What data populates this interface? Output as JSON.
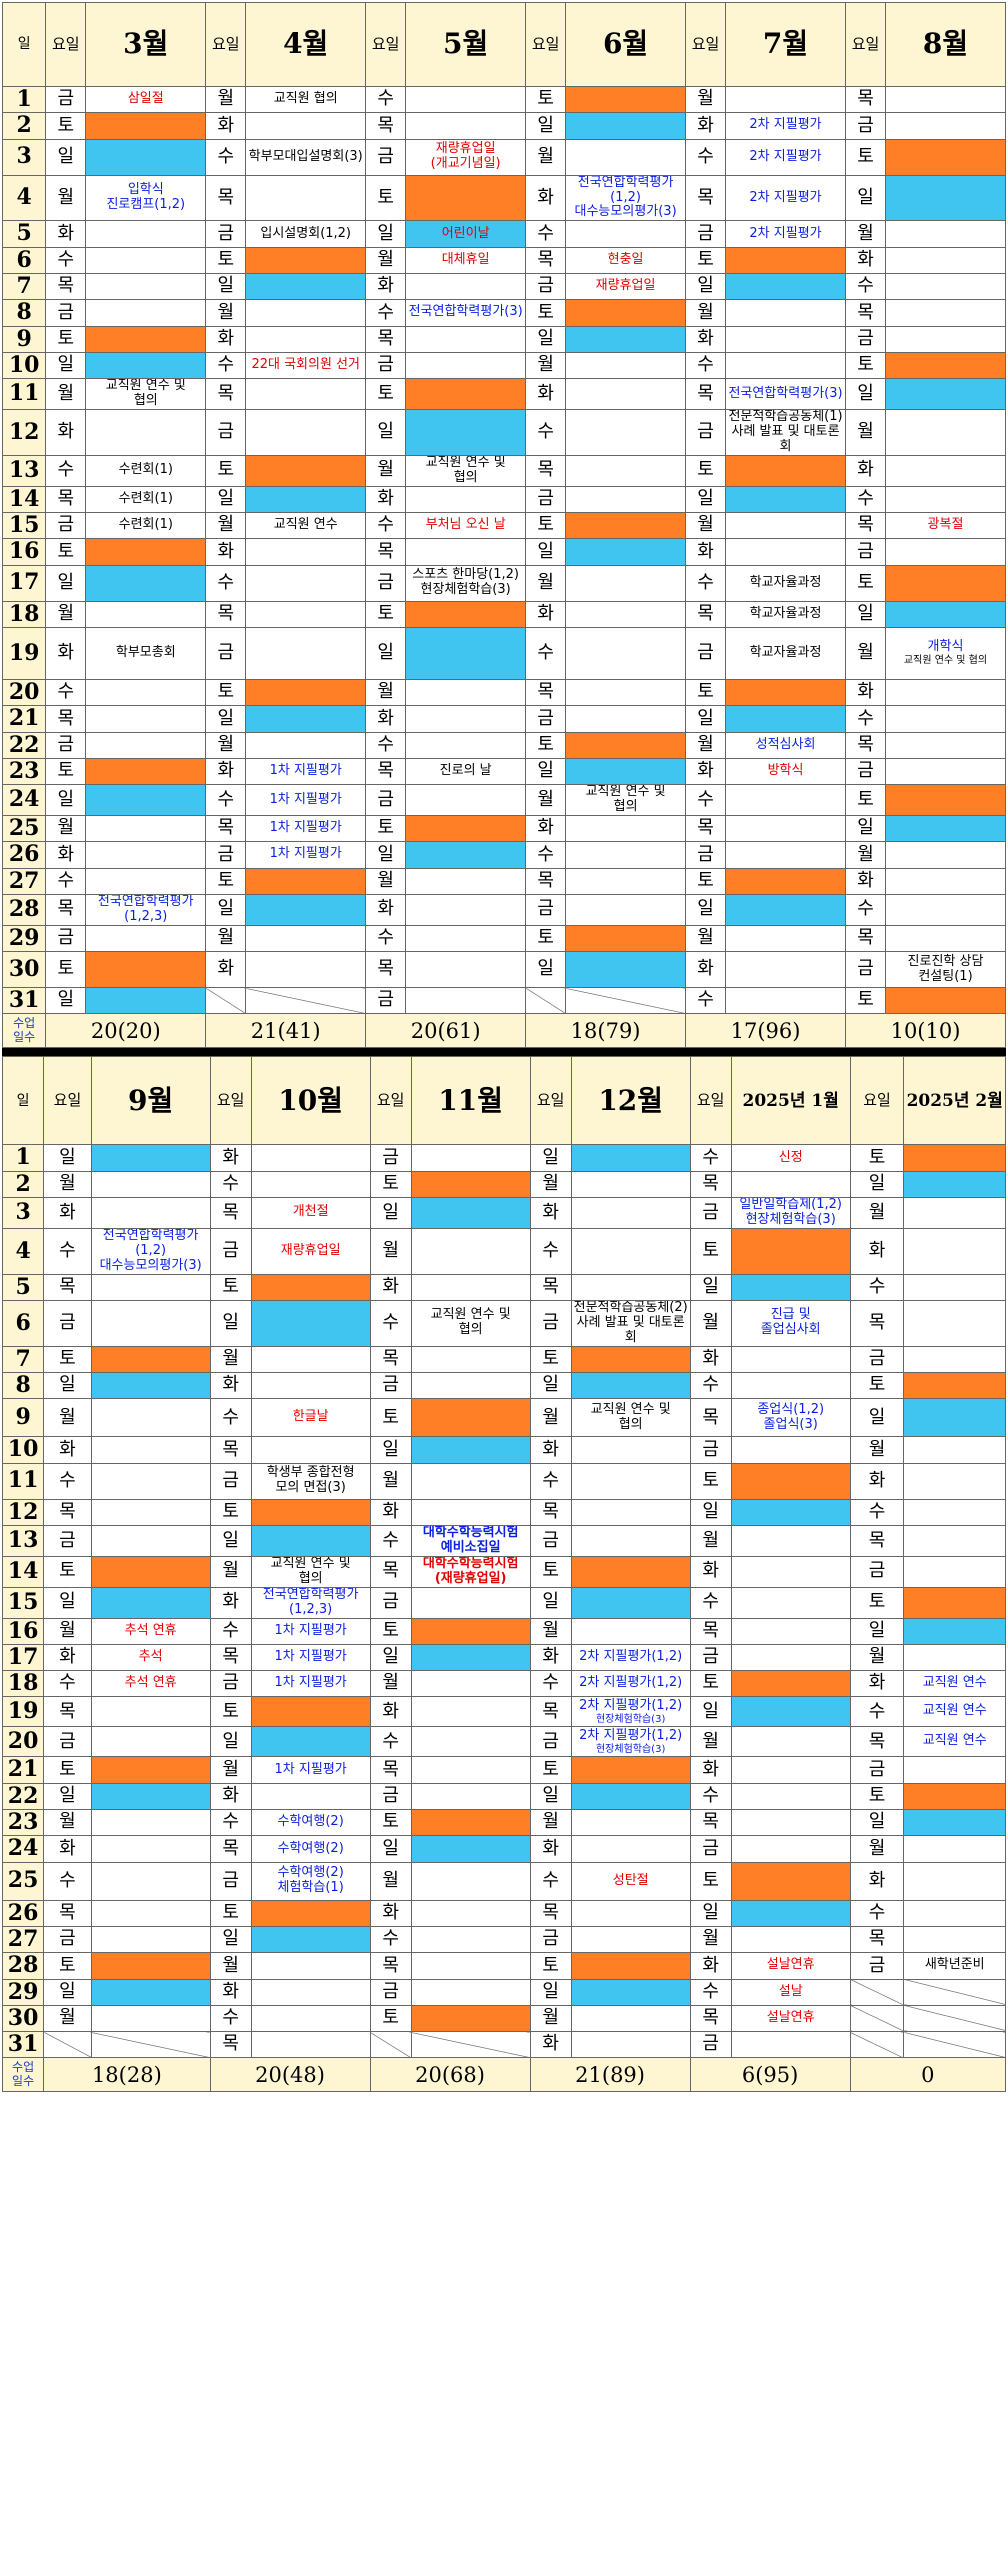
{
  "labels": {
    "day_header": "일",
    "weekday_header": "요일",
    "total_header": [
      "수업",
      "일수"
    ]
  },
  "colors": {
    "saturday": "#ff7f27",
    "sunday": "#40c5f0",
    "header_bg": "#fef6d3"
  },
  "blocks": [
    {
      "months": [
        {
          "name": "3월",
          "total": "20(20)",
          "start": "금",
          "len": 31,
          "events": {
            "1": {
              "t": [
                "삼일절"
              ],
              "c": "rd"
            },
            "4": {
              "t": [
                "입학식",
                "진로캠프(1,2)"
              ],
              "c": "bl",
              "s": "md"
            },
            "11": {
              "t": [
                "교직원 연수 및",
                "협의"
              ],
              "c": "bk",
              "s": "sm"
            },
            "13": {
              "t": [
                "수련회(1)"
              ],
              "c": "bk"
            },
            "14": {
              "t": [
                "수련회(1)"
              ],
              "c": "bk"
            },
            "15": {
              "t": [
                "수련회(1)"
              ],
              "c": "bk"
            },
            "19": {
              "t": [
                "학부모총회"
              ],
              "c": "bk"
            },
            "28": {
              "t": [
                "전국연합학력평가(1,2,3)"
              ],
              "c": "bl",
              "s": "xs"
            }
          }
        },
        {
          "name": "4월",
          "total": "21(41)",
          "start": "월",
          "len": 30,
          "events": {
            "1": {
              "t": [
                "교직원 협의"
              ],
              "c": "bk",
              "s": "sm"
            },
            "3": {
              "t": [
                "학부모대입설명회(3)"
              ],
              "c": "bk",
              "s": "xs"
            },
            "5": {
              "t": [
                "입시설명회(1,2)"
              ],
              "c": "bk"
            },
            "10": {
              "t": [
                "22대 국회의원 선거"
              ],
              "c": "rd",
              "s": "xs"
            },
            "15": {
              "t": [
                "교직원 연수"
              ],
              "c": "bk",
              "s": "md"
            },
            "23": {
              "t": [
                "1차 지필평가"
              ],
              "c": "bl"
            },
            "24": {
              "t": [
                "1차 지필평가"
              ],
              "c": "bl"
            },
            "25": {
              "t": [
                "1차 지필평가"
              ],
              "c": "bl"
            },
            "26": {
              "t": [
                "1차 지필평가"
              ],
              "c": "bl"
            }
          }
        },
        {
          "name": "5월",
          "total": "20(61)",
          "start": "수",
          "len": 31,
          "events": {
            "3": {
              "t": [
                "재량휴업일",
                "(개교기념일)"
              ],
              "c": "rd",
              "s": "md"
            },
            "5": {
              "t": [
                "어린이날"
              ],
              "c": "rd"
            },
            "6": {
              "t": [
                "대체휴일"
              ],
              "c": "rd"
            },
            "8": {
              "t": [
                "전국연합학력평가(3)"
              ],
              "c": "bl",
              "s": "sm"
            },
            "13": {
              "t": [
                "교직원 연수 및",
                "협의"
              ],
              "c": "bk",
              "s": "sm"
            },
            "15": {
              "t": [
                "부처님 오신 날"
              ],
              "c": "rd"
            },
            "17": {
              "t": [
                "스포츠 한마당(1,2)",
                "현장체험학습(3)"
              ],
              "c": "bk",
              "s": "xs"
            },
            "23": {
              "t": [
                "진로의 날"
              ],
              "c": "bk"
            }
          }
        },
        {
          "name": "6월",
          "total": "18(79)",
          "start": "토",
          "len": 30,
          "events": {
            "4": {
              "t": [
                "전국연합학력평가(1,2)",
                "대수능모의평가(3)"
              ],
              "c": "bl",
              "s": "xs"
            },
            "6": {
              "t": [
                "현충일"
              ],
              "c": "rd"
            },
            "7": {
              "t": [
                "재량휴업일"
              ],
              "c": "rd"
            },
            "24": {
              "t": [
                "교직원 연수 및",
                "협의"
              ],
              "c": "bk",
              "s": "sm"
            }
          }
        },
        {
          "name": "7월",
          "total": "17(96)",
          "start": "월",
          "len": 31,
          "events": {
            "2": {
              "t": [
                "2차 지필평가"
              ],
              "c": "bl"
            },
            "3": {
              "t": [
                "2차 지필평가"
              ],
              "c": "bl"
            },
            "4": {
              "t": [
                "2차 지필평가"
              ],
              "c": "bl"
            },
            "5": {
              "t": [
                "2차 지필평가"
              ],
              "c": "bl"
            },
            "11": {
              "t": [
                "전국연합학력평가(3)"
              ],
              "c": "bl",
              "s": "sm"
            },
            "12": {
              "t": [
                "전문적학습공동체(1)",
                "사례 발표 및 대토론회"
              ],
              "c": "bk",
              "s": "xs"
            },
            "17": {
              "t": [
                "학교자율과정"
              ],
              "c": "bk",
              "s": "sm"
            },
            "18": {
              "t": [
                "학교자율과정"
              ],
              "c": "bk",
              "s": "sm"
            },
            "19": {
              "t": [
                "학교자율과정"
              ],
              "c": "bk",
              "s": "sm"
            },
            "22": {
              "t": [
                "성적심사회"
              ],
              "c": "bl"
            },
            "23": {
              "t": [
                "방학식"
              ],
              "c": "rd",
              "s": "md"
            }
          }
        },
        {
          "name": "8월",
          "total": "10(10)",
          "start": "목",
          "len": 31,
          "events": {
            "15": {
              "t": [
                "광복절"
              ],
              "c": "rd",
              "s": "lg"
            },
            "19": {
              "t": [
                "개학식",
                "교직원 연수 및 협의"
              ],
              "c": "bl",
              "s": "lg",
              "small2": true
            },
            "30": {
              "t": [
                "진로진학 상담",
                "컨설팅(1)"
              ],
              "c": "bk",
              "s": "md"
            }
          }
        }
      ]
    },
    {
      "months": [
        {
          "name": "9월",
          "total": "18(28)",
          "start": "일",
          "len": 30,
          "events": {
            "4": {
              "t": [
                "전국연합학력평가(1,2)",
                "대수능모의평가(3)"
              ],
              "c": "bl",
              "s": "xs"
            },
            "16": {
              "t": [
                "추석 연휴"
              ],
              "c": "rd"
            },
            "17": {
              "t": [
                "추석"
              ],
              "c": "rd"
            },
            "18": {
              "t": [
                "추석 연휴"
              ],
              "c": "rd"
            }
          }
        },
        {
          "name": "10월",
          "total": "20(48)",
          "start": "화",
          "len": 31,
          "events": {
            "3": {
              "t": [
                "개천절"
              ],
              "c": "rd"
            },
            "4": {
              "t": [
                "재량휴업일"
              ],
              "c": "rd"
            },
            "9": {
              "t": [
                "한글날"
              ],
              "c": "rd",
              "s": "lg"
            },
            "11": {
              "t": [
                "학생부 종합전형",
                "모의 면접(3)"
              ],
              "c": "bk",
              "s": "md"
            },
            "14": {
              "t": [
                "교직원 연수 및",
                "협의"
              ],
              "c": "bk",
              "s": "sm"
            },
            "15": {
              "t": [
                "전국연합학력평가",
                "(1,2,3)"
              ],
              "c": "bl",
              "s": "sm"
            },
            "16": {
              "t": [
                "1차 지필평가"
              ],
              "c": "bl"
            },
            "17": {
              "t": [
                "1차 지필평가"
              ],
              "c": "bl"
            },
            "18": {
              "t": [
                "1차 지필평가"
              ],
              "c": "bl"
            },
            "21": {
              "t": [
                "1차 지필평가"
              ],
              "c": "bl"
            },
            "23": {
              "t": [
                "수학여행(2)"
              ],
              "c": "bl"
            },
            "24": {
              "t": [
                "수학여행(2)"
              ],
              "c": "bl"
            },
            "25": {
              "t": [
                "수학여행(2)",
                "체험학습(1)"
              ],
              "c": "bl"
            }
          }
        },
        {
          "name": "11월",
          "total": "20(68)",
          "start": "금",
          "len": 30,
          "events": {
            "6": {
              "t": [
                "교직원 연수 및",
                "협의"
              ],
              "c": "bk",
              "s": "sm"
            },
            "13": {
              "t": [
                "대학수학능력시험",
                "예비소집일"
              ],
              "c": "bl",
              "b": true
            },
            "14": {
              "t": [
                "대학수학능력시험",
                "(재량휴업일)"
              ],
              "c": "rd",
              "b": true
            }
          }
        },
        {
          "name": "12월",
          "total": "21(89)",
          "start": "일",
          "len": 31,
          "events": {
            "6": {
              "t": [
                "전문적학습공동체(2)",
                "사례 발표 및 대토론회"
              ],
              "c": "bk",
              "s": "xs"
            },
            "9": {
              "t": [
                "교직원 연수 및",
                "협의"
              ],
              "c": "bk",
              "s": "sm"
            },
            "17": {
              "t": [
                "2차 지필평가(1,2)"
              ],
              "c": "bl"
            },
            "18": {
              "t": [
                "2차 지필평가(1,2)"
              ],
              "c": "bl"
            },
            "19": {
              "t": [
                "2차 지필평가(1,2)",
                "현장체험학습(3)"
              ],
              "c": "bl",
              "sub": true
            },
            "20": {
              "t": [
                "2차 지필평가(1,2)",
                "현장체험학습(3)"
              ],
              "c": "bl",
              "sub": true
            },
            "25": {
              "t": [
                "성탄절"
              ],
              "c": "rd",
              "s": "md"
            }
          }
        },
        {
          "name": "2025년 1월",
          "total": "6(95)",
          "start": "수",
          "len": 31,
          "events": {
            "1": {
              "t": [
                "신정"
              ],
              "c": "rd",
              "s": "md"
            },
            "3": {
              "t": [
                "일반일학습제(1,2)",
                "현장체험학습(3)"
              ],
              "c": "bl",
              "s": "sm"
            },
            "6": {
              "t": [
                "진급 및",
                "졸업심사회"
              ],
              "c": "bl"
            },
            "9": {
              "t": [
                "종업식(1,2)",
                "졸업식(3)"
              ],
              "c": "bl"
            },
            "28": {
              "t": [
                "설날연휴"
              ],
              "c": "rd"
            },
            "29": {
              "t": [
                "설날"
              ],
              "c": "rd"
            },
            "30": {
              "t": [
                "설날연휴"
              ],
              "c": "rd"
            }
          }
        },
        {
          "name": "2025년 2월",
          "total": "0",
          "start": "토",
          "len": 28,
          "events": {
            "18": {
              "t": [
                "교직원 연수"
              ],
              "c": "bl",
              "s": "sm"
            },
            "19": {
              "t": [
                "교직원 연수"
              ],
              "c": "bl",
              "s": "sm"
            },
            "20": {
              "t": [
                "교직원 연수"
              ],
              "c": "bl",
              "s": "sm"
            },
            "28": {
              "t": [
                "새학년준비"
              ],
              "c": "bk",
              "s": "xs"
            }
          }
        }
      ]
    }
  ]
}
